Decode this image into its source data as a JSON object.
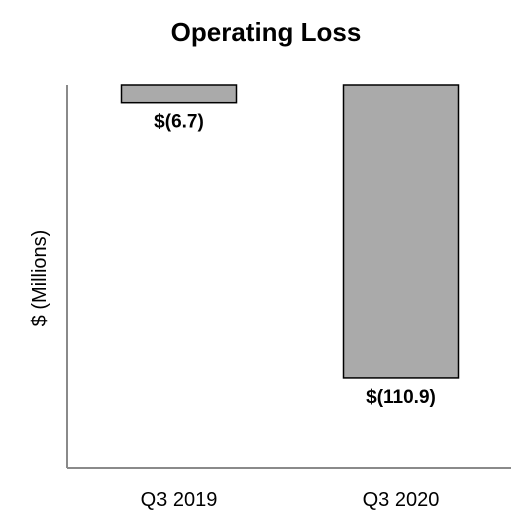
{
  "chart_data": {
    "type": "bar",
    "title": "Operating Loss",
    "ylabel": "$ (Millions)",
    "xlabel": "",
    "categories": [
      "Q3 2019",
      "Q3 2020"
    ],
    "values": [
      -6.7,
      -110.9
    ],
    "value_labels": [
      "$(6.7)",
      "$(110.9)"
    ],
    "ylim": [
      -145,
      0
    ],
    "grid": false,
    "legend": "none",
    "colors": {
      "bar_fill": "#aaaaaa",
      "bar_stroke": "#000000",
      "axis": "#8a8a8a",
      "text": "#000000"
    }
  }
}
